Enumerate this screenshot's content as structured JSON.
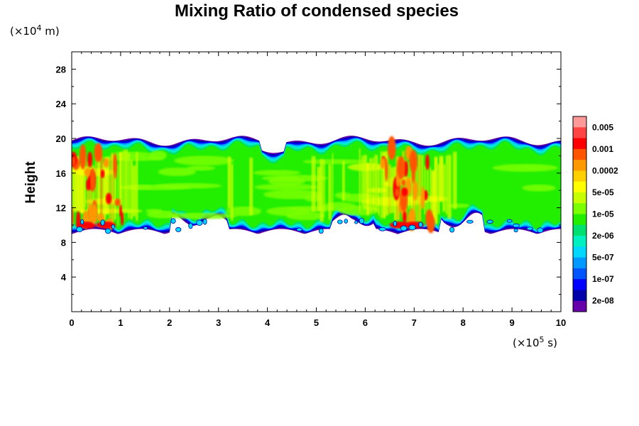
{
  "chart_data": {
    "type": "heatmap",
    "title": "Mixing Ratio of condensed species",
    "ylabel": "Height",
    "y_unit": {
      "prefix": "(×10",
      "exp": "4",
      "suffix": " m)"
    },
    "x_unit": {
      "prefix": "(×10",
      "exp": "5",
      "suffix": " s)"
    },
    "xlim": [
      0,
      10
    ],
    "ylim": [
      0,
      30
    ],
    "x_ticks": [
      "0",
      "1",
      "2",
      "3",
      "4",
      "5",
      "6",
      "7",
      "8",
      "9",
      "10"
    ],
    "x_tick_values": [
      0,
      1,
      2,
      3,
      4,
      5,
      6,
      7,
      8,
      9,
      10
    ],
    "y_ticks": [
      "4",
      "8",
      "12",
      "16",
      "20",
      "24",
      "28"
    ],
    "y_tick_values": [
      4,
      8,
      12,
      16,
      20,
      24,
      28
    ],
    "colorbar": {
      "labels": [
        "0.005",
        "0.001",
        "0.0002",
        "5e-05",
        "1e-05",
        "2e-06",
        "5e-07",
        "1e-07",
        "2e-08"
      ],
      "colors": [
        "#ff9999",
        "#ff4444",
        "#ff0000",
        "#ff5500",
        "#ff9900",
        "#ffd000",
        "#ffff00",
        "#c8ff00",
        "#7cff00",
        "#22ee00",
        "#00e070",
        "#00f0c0",
        "#00d8ff",
        "#0099ff",
        "#0055ff",
        "#0000ff",
        "#0000aa",
        "#6600aa"
      ]
    },
    "field": {
      "cloud_base_height": [
        9.5,
        10.5
      ],
      "cloud_top_height": [
        19.5,
        20.5
      ],
      "core_height_range": [
        10,
        19
      ],
      "max_value_locations_x": [
        0.3,
        0.7,
        6.7,
        7.0
      ],
      "max_value_heights": [
        10,
        14,
        17
      ]
    }
  }
}
